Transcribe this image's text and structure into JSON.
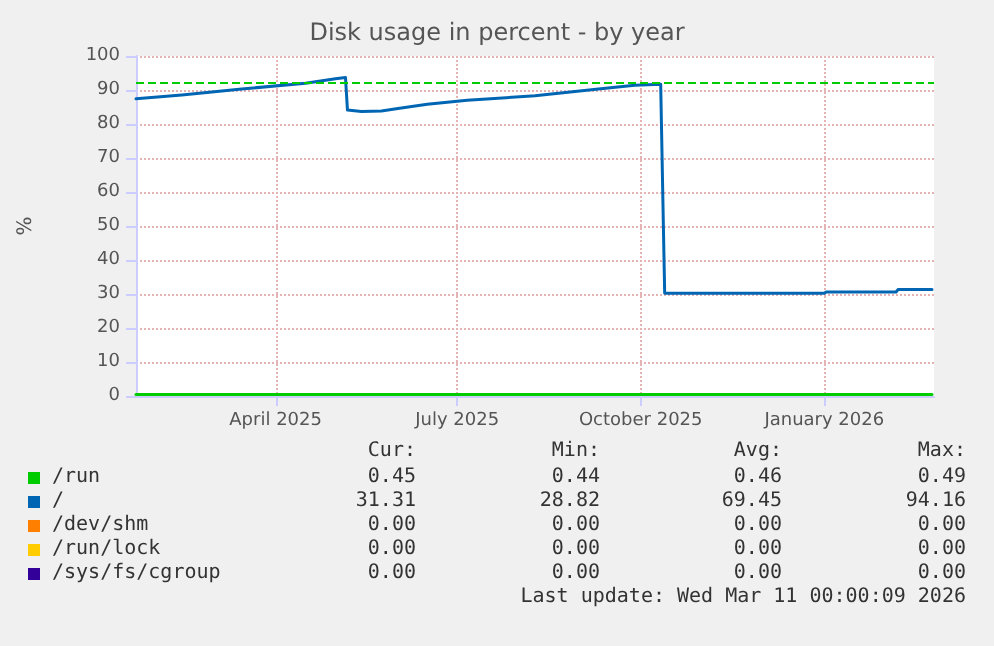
{
  "chart_data": {
    "type": "line",
    "title": "Disk usage in percent - by year",
    "ylabel": "%",
    "xlim": [
      "2025-02-04",
      "2026-03-11"
    ],
    "xticks": [
      {
        "value": "2025-04-15",
        "label": "April 2025"
      },
      {
        "value": "2025-07-15",
        "label": "July 2025"
      },
      {
        "value": "2025-10-15",
        "label": "October 2025"
      },
      {
        "value": "2026-01-15",
        "label": "January 2026"
      }
    ],
    "ylim": [
      0,
      100
    ],
    "yticks": [
      0,
      10,
      20,
      30,
      40,
      50,
      60,
      70,
      80,
      90,
      100
    ],
    "grid": true,
    "legend": "bottom",
    "marker": "none",
    "line_style": "solid",
    "series": [
      {
        "name": "/run",
        "color": "#00cc00",
        "x": [
          "2025-02-04",
          "2026-03-10"
        ],
        "values": [
          0.45,
          0.45
        ]
      },
      {
        "name": "/",
        "color": "#0066b3",
        "x": [
          "2025-02-04",
          "2025-02-27",
          "2025-03-29",
          "2025-04-30",
          "2025-05-15",
          "2025-05-20",
          "2025-05-21",
          "2025-05-28",
          "2025-06-07",
          "2025-06-17",
          "2025-06-30",
          "2025-07-20",
          "2025-08-23",
          "2025-09-25",
          "2025-10-12",
          "2025-10-25",
          "2025-10-27",
          "2026-01-15",
          "2026-01-16",
          "2026-02-20",
          "2026-02-21",
          "2026-03-10"
        ],
        "values": [
          87.4,
          88.5,
          90.3,
          92.0,
          93.3,
          93.7,
          84.1,
          83.7,
          83.8,
          84.7,
          85.8,
          87.0,
          88.3,
          90.4,
          91.4,
          91.7,
          30.2,
          30.2,
          30.6,
          30.6,
          31.3,
          31.3
        ]
      },
      {
        "name": "/dev/shm",
        "color": "#ff8000"
      },
      {
        "name": "/run/lock",
        "color": "#ffcc00"
      },
      {
        "name": "/sys/fs/cgroup",
        "color": "#330099"
      }
    ],
    "ref_lines": [
      {
        "axis": "y",
        "value": 92,
        "color": "#00cc00",
        "line_style": "dashed"
      }
    ],
    "annotations": [
      "Cur:",
      "Min:",
      "Avg:",
      "Max:",
      "0.45",
      "0.44",
      "0.46",
      "0.49",
      "31.31",
      "28.82",
      "69.45",
      "94.16",
      "0.00",
      "0.00",
      "0.00",
      "0.00",
      "0.00",
      "0.00",
      "0.00",
      "0.00",
      "0.00",
      "0.00",
      "0.00",
      "0.00",
      "Last update: Wed Mar 11 00:00:09 2026"
    ]
  }
}
